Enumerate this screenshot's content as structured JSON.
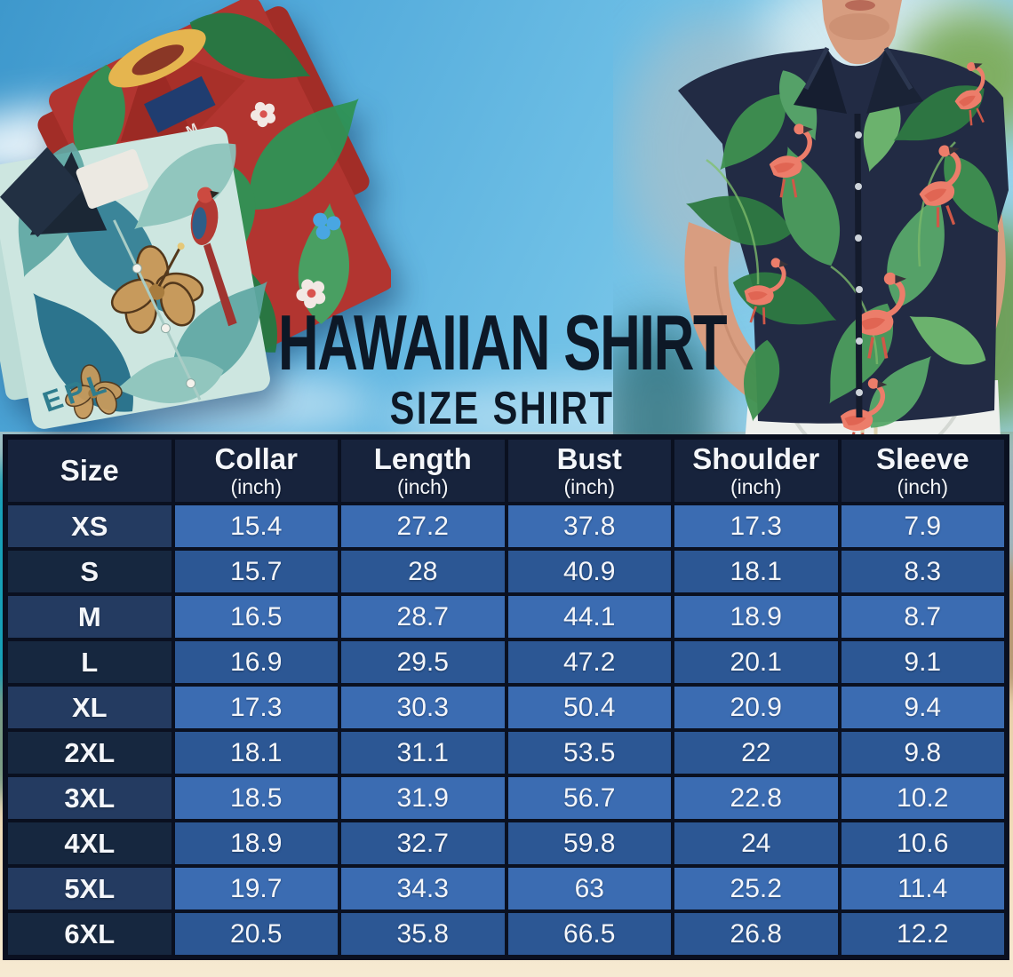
{
  "title": {
    "main": "HAWAIIAN SHIRT",
    "subtitle": "SIZE SHIRT"
  },
  "photos": {
    "red_shirt_label": "M",
    "teal_shirt_print": "EPL"
  },
  "colors": {
    "header_bg": "#17233c",
    "row_light_blue": "#3b6cb2",
    "row_dark_blue": "#2c5794",
    "size_col_light_navy": "#243b61",
    "size_col_dark_navy": "#16273f",
    "table_border": "#0a1020",
    "title_text": "#0d1826",
    "sky_blue": "#51a9da",
    "sand": "#efdab6"
  },
  "chart_data": {
    "type": "table",
    "title": "HAWAIIAN SHIRT",
    "subtitle": "SIZE SHIRT",
    "columns": [
      {
        "label": "Size",
        "unit": ""
      },
      {
        "label": "Collar",
        "unit": "(inch)"
      },
      {
        "label": "Length",
        "unit": "(inch)"
      },
      {
        "label": "Bust",
        "unit": "(inch)"
      },
      {
        "label": "Shoulder",
        "unit": "(inch)"
      },
      {
        "label": "Sleeve",
        "unit": "(inch)"
      }
    ],
    "rows": [
      {
        "size": "XS",
        "values": [
          "15.4",
          "27.2",
          "37.8",
          "17.3",
          "7.9"
        ]
      },
      {
        "size": "S",
        "values": [
          "15.7",
          "28",
          "40.9",
          "18.1",
          "8.3"
        ]
      },
      {
        "size": "M",
        "values": [
          "16.5",
          "28.7",
          "44.1",
          "18.9",
          "8.7"
        ]
      },
      {
        "size": "L",
        "values": [
          "16.9",
          "29.5",
          "47.2",
          "20.1",
          "9.1"
        ]
      },
      {
        "size": "XL",
        "values": [
          "17.3",
          "30.3",
          "50.4",
          "20.9",
          "9.4"
        ]
      },
      {
        "size": "2XL",
        "values": [
          "18.1",
          "31.1",
          "53.5",
          "22",
          "9.8"
        ]
      },
      {
        "size": "3XL",
        "values": [
          "18.5",
          "31.9",
          "56.7",
          "22.8",
          "10.2"
        ]
      },
      {
        "size": "4XL",
        "values": [
          "18.9",
          "32.7",
          "59.8",
          "24",
          "10.6"
        ]
      },
      {
        "size": "5XL",
        "values": [
          "19.7",
          "34.3",
          "63",
          "25.2",
          "11.4"
        ]
      },
      {
        "size": "6XL",
        "values": [
          "20.5",
          "35.8",
          "66.5",
          "26.8",
          "12.2"
        ]
      }
    ]
  }
}
